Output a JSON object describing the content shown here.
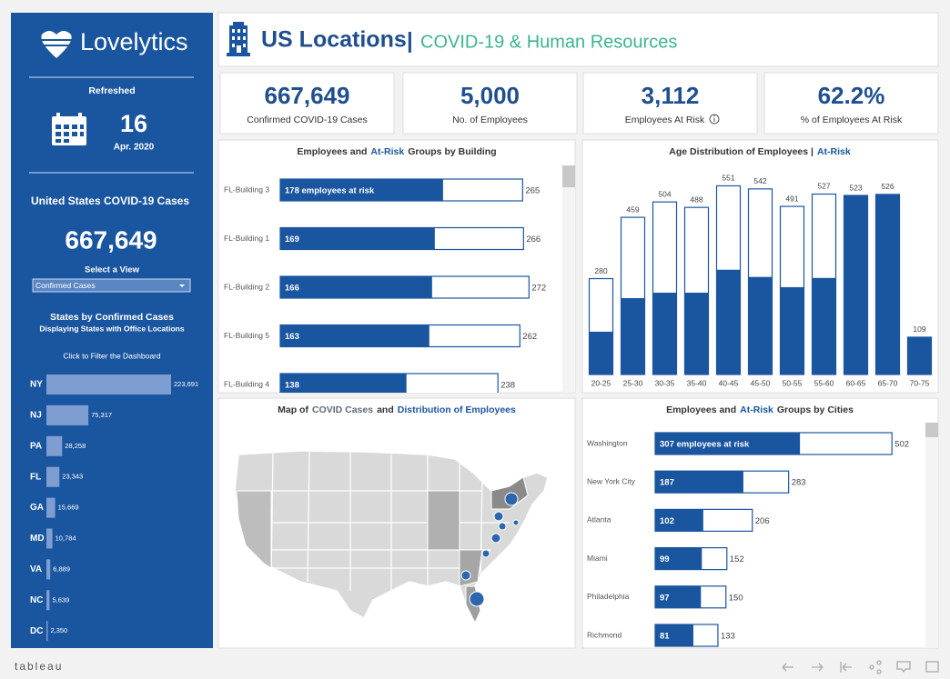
{
  "sidebar": {
    "brand": "Lovelytics",
    "refreshed_label": "Refreshed",
    "day": "16",
    "month": "Apr. 2020",
    "cases_title": "United States COVID-19 Cases",
    "cases_total": "667,649",
    "select_label": "Select a View",
    "select_value": "Confirmed Cases",
    "states_title": "States by Confirmed Cases",
    "states_subtitle": "Displaying States with Office Locations",
    "filter_hint": "Click to Filter the Dashboard",
    "states_chart": {
      "type": "bar",
      "categories": [
        "NY",
        "NJ",
        "PA",
        "FL",
        "GA",
        "MD",
        "VA",
        "NC",
        "DC"
      ],
      "values": [
        223691,
        75317,
        28258,
        23343,
        15669,
        10784,
        6889,
        5639,
        2350
      ],
      "value_labels": [
        "223,691",
        "75,317",
        "28,258",
        "23,343",
        "15,669",
        "10,784",
        "6,889",
        "5,639",
        "2,350"
      ],
      "xlim": [
        0,
        223691
      ],
      "color": "#7e9ed2"
    }
  },
  "header": {
    "title": "US Locations",
    "separator": "|",
    "subtitle": "COVID-19 & Human Resources"
  },
  "kpis": [
    {
      "value": "667,649",
      "label": "Confirmed COVID-19 Cases"
    },
    {
      "value": "5,000",
      "label": "No. of Employees"
    },
    {
      "value": "3,112",
      "label": "Employees At Risk"
    },
    {
      "value": "62.2%",
      "label": "% of Employees At Risk"
    }
  ],
  "building_chart": {
    "type": "bar",
    "title": [
      "Employees and",
      "At-Risk",
      "Groups by Building"
    ],
    "title_colors": [
      "#333333",
      "#1a56a0",
      "#333333"
    ],
    "categories": [
      "FL-Building 3",
      "FL-Building 1",
      "FL-Building 2",
      "FL-Building 5",
      "FL-Building 4"
    ],
    "series": [
      {
        "color": "#ffffff",
        "values": [
          265,
          266,
          272,
          262,
          238
        ]
      },
      {
        "color": "#1a56a0",
        "values": [
          178,
          169,
          166,
          163,
          138
        ],
        "value_labels": [
          "178 employees at risk",
          "169",
          "166",
          "163",
          "138"
        ]
      }
    ],
    "xlim": [
      0,
      300
    ]
  },
  "age_chart": {
    "type": "bar",
    "title": [
      "Age Distribution of Employees |",
      "At-Risk"
    ],
    "title_colors": [
      "#333333",
      "#1a56a0"
    ],
    "categories": [
      "20-25",
      "25-30",
      "30-35",
      "35-40",
      "40-45",
      "45-50",
      "50-55",
      "55-60",
      "60-65",
      "65-70",
      "70-75"
    ],
    "series": [
      {
        "color": "#ffffff",
        "values": [
          280,
          459,
          504,
          488,
          551,
          542,
          491,
          527,
          523,
          526,
          109
        ]
      },
      {
        "color": "#1a56a0",
        "values": [
          125,
          223,
          239,
          239,
          306,
          285,
          255,
          282,
          523,
          526,
          109
        ]
      }
    ],
    "ylim": [
      0,
      600
    ]
  },
  "map_panel": {
    "title": [
      "Map of",
      "COVID Cases",
      "and",
      "Distribution of Employees"
    ],
    "title_colors": [
      "#333333",
      "#5e6b78",
      "#333333",
      "#1a56a0"
    ]
  },
  "city_chart": {
    "type": "bar",
    "title": [
      "Employees and",
      "At-Risk",
      "Groups by Cities"
    ],
    "title_colors": [
      "#333333",
      "#1a56a0",
      "#333333"
    ],
    "categories": [
      "Washington",
      "New York City",
      "Atlanta",
      "Miami",
      "Philadelphia",
      "Richmond"
    ],
    "series": [
      {
        "color": "#ffffff",
        "values": [
          502,
          283,
          206,
          152,
          150,
          133
        ]
      },
      {
        "color": "#1a56a0",
        "values": [
          307,
          187,
          102,
          99,
          97,
          81
        ],
        "value_labels": [
          "307 employees at risk",
          "187",
          "102",
          "99",
          "97",
          "81"
        ]
      }
    ],
    "xlim": [
      0,
      600
    ]
  },
  "footer": {
    "brand": "tableau"
  }
}
